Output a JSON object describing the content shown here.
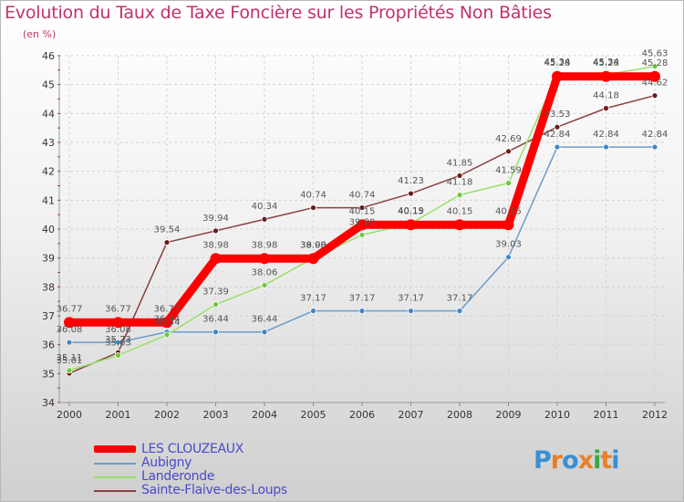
{
  "title": "Evolution du Taux de Taxe Foncière sur les Propriétés Non Bâties",
  "unit": "(en %)",
  "logo": {
    "text": "Proxiti",
    "letters": [
      {
        "ch": "P",
        "color": "#3a8fd4"
      },
      {
        "ch": "r",
        "color": "#e8802a"
      },
      {
        "ch": "o",
        "color": "#3a8fd4"
      },
      {
        "ch": "x",
        "color": "#e8802a"
      },
      {
        "ch": "i",
        "color": "#3aa84a"
      },
      {
        "ch": "t",
        "color": "#e8802a"
      },
      {
        "ch": "i",
        "color": "#3a8fd4"
      }
    ]
  },
  "chart_data": {
    "type": "line",
    "title": "Evolution du Taux de Taxe Foncière sur les Propriétés Non Bâties",
    "ylabel": "(en %)",
    "xlabel": "",
    "ylim": [
      34,
      46
    ],
    "yticks": [
      34,
      35,
      36,
      37,
      38,
      39,
      40,
      41,
      42,
      43,
      44,
      45,
      46
    ],
    "categories": [
      "2000",
      "2001",
      "2002",
      "2003",
      "2004",
      "2005",
      "2006",
      "2007",
      "2008",
      "2009",
      "2010",
      "2011",
      "2012"
    ],
    "legend_position": "bottom-left",
    "grid": true,
    "series": [
      {
        "name": "LES CLOUZEAUX",
        "color": "#ff0000",
        "marker": "#ff0000",
        "values": [
          36.77,
          36.77,
          36.77,
          38.98,
          38.98,
          38.98,
          40.15,
          40.15,
          40.15,
          40.15,
          45.28,
          45.28,
          45.28
        ],
        "labels": [
          "36.77",
          "36.77",
          "36.77",
          "38.98",
          "38.98",
          "38.98",
          "40.15",
          "40.15",
          "40.15",
          "40.15",
          "45.28",
          "45.28",
          "45.28"
        ]
      },
      {
        "name": "Aubigny",
        "color": "#6a9ccc",
        "marker": "#3f86c6",
        "values": [
          36.08,
          36.08,
          36.44,
          36.44,
          36.44,
          37.17,
          37.17,
          37.17,
          37.17,
          39.03,
          42.84,
          42.84,
          42.84
        ],
        "labels": [
          "36.08",
          "36.08",
          "36.44",
          "36.44",
          "36.44",
          "37.17",
          "37.17",
          "37.17",
          "37.17",
          "39.03",
          "42.84",
          "42.84",
          "42.84"
        ]
      },
      {
        "name": "Landeronde",
        "color": "#99e06a",
        "marker": "#6cc83c",
        "values": [
          35.11,
          35.63,
          36.34,
          37.39,
          38.06,
          39.0,
          39.8,
          40.19,
          41.18,
          41.59,
          45.34,
          45.34,
          45.63
        ],
        "labels": [
          "35.11",
          "35.63",
          "36.34",
          "37.39",
          "38.06",
          "39.00",
          "39.80",
          "40.19",
          "41.18",
          "41.59",
          "45.34",
          "45.34",
          "45.63"
        ]
      },
      {
        "name": "Sainte-Flaive-des-Loups",
        "color": "#8a4040",
        "marker": "#6a1d1d",
        "values": [
          35.01,
          35.73,
          39.54,
          39.94,
          40.34,
          40.74,
          40.74,
          41.23,
          41.85,
          42.69,
          43.53,
          44.18,
          44.62
        ],
        "labels": [
          "35.01",
          "35.73",
          "39.54",
          "39.94",
          "40.34",
          "40.74",
          "40.74",
          "41.23",
          "41.85",
          "42.69",
          "43.53",
          "44.18",
          "44.62"
        ]
      }
    ]
  }
}
